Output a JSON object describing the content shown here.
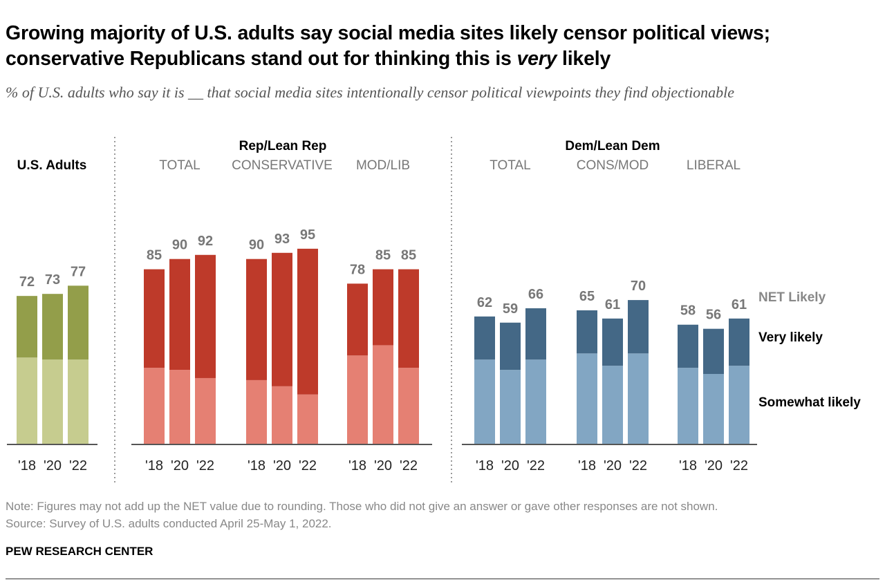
{
  "title_main": "Growing majority of U.S. adults say social media sites likely censor political views; conservative Republicans stand out for thinking this is ",
  "title_italic": "very",
  "title_end": " likely",
  "subtitle": "% of U.S. adults who say it is __ that social media sites intentionally censor political viewpoints they find objectionable",
  "note": "Note: Figures may not add up the NET value due to rounding. Those who did not give an answer or gave other responses are not shown.",
  "source": "Source: Survey of U.S. adults conducted April 25-May 1, 2022.",
  "credit": "PEW RESEARCH CENTER",
  "colors": {
    "adults_very": "#939e4a",
    "adults_somewhat": "#c6cc8f",
    "rep_very": "#be3a2a",
    "rep_somewhat": "#e58073",
    "dem_very": "#446886",
    "dem_somewhat": "#82a6c3",
    "value_label": "#777777",
    "legend_net": "#888888"
  },
  "chart_data": {
    "type": "bar",
    "stacked": true,
    "title": "Growing majority of U.S. adults say social media sites likely censor political views; conservative Republicans stand out for thinking this is very likely",
    "ylim": [
      0,
      100
    ],
    "years": [
      "'18",
      "'20",
      "'22"
    ],
    "legend": [
      "NET Likely",
      "Very likely",
      "Somewhat likely"
    ],
    "groups": [
      {
        "label": "U.S. Adults",
        "subgroups": [
          {
            "label": "",
            "palette": "adults",
            "net": [
              72,
              73,
              77
            ],
            "very": [
              30,
              31,
              36
            ],
            "somewhat": [
              42,
              41,
              41
            ]
          }
        ]
      },
      {
        "label": "Rep/Lean Rep",
        "subgroups": [
          {
            "label": "TOTAL",
            "palette": "rep",
            "net": [
              85,
              90,
              92
            ],
            "very": [
              48,
              54,
              60
            ],
            "somewhat": [
              37,
              36,
              32
            ]
          },
          {
            "label": "CONSERVATIVE",
            "palette": "rep",
            "net": [
              90,
              93,
              95
            ],
            "very": [
              59,
              66,
              71
            ],
            "somewhat": [
              31,
              28,
              24
            ]
          },
          {
            "label": "MOD/LIB",
            "palette": "rep",
            "net": [
              78,
              85,
              85
            ],
            "very": [
              35,
              37,
              48
            ],
            "somewhat": [
              43,
              48,
              37
            ]
          }
        ]
      },
      {
        "label": "Dem/Lean Dem",
        "subgroups": [
          {
            "label": "TOTAL",
            "palette": "dem",
            "net": [
              62,
              59,
              66
            ],
            "very": [
              21,
              23,
              25
            ],
            "somewhat": [
              41,
              36,
              41
            ]
          },
          {
            "label": "CONS/MOD",
            "palette": "dem",
            "net": [
              65,
              61,
              70
            ],
            "very": [
              21,
              23,
              26
            ],
            "somewhat": [
              44,
              38,
              44
            ]
          },
          {
            "label": "LIBERAL",
            "palette": "dem",
            "net": [
              58,
              56,
              61
            ],
            "very": [
              21,
              22,
              23
            ],
            "somewhat": [
              37,
              34,
              38
            ]
          }
        ]
      }
    ]
  }
}
